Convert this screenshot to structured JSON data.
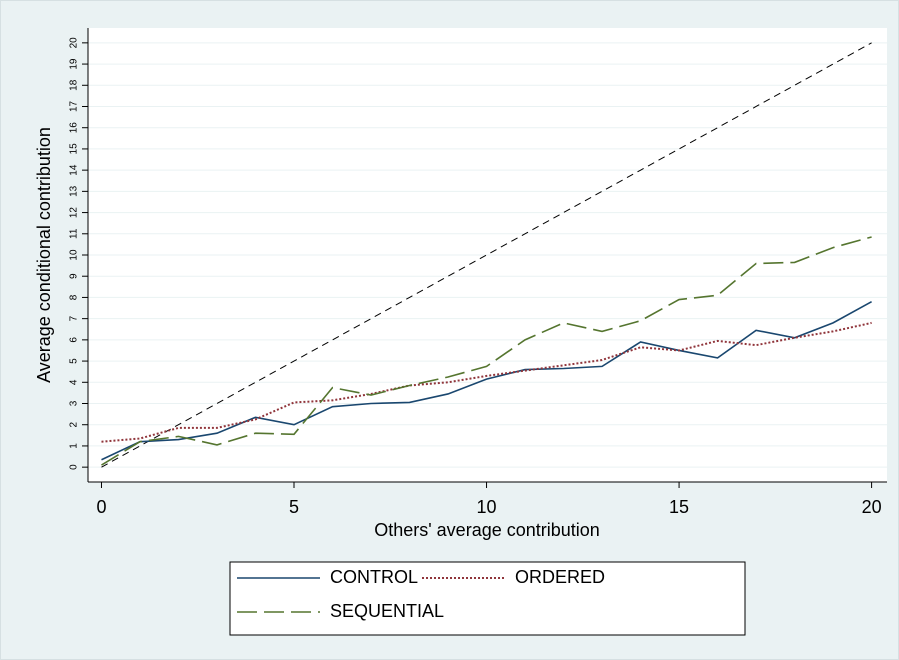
{
  "chart_data": {
    "type": "line",
    "y_axis_label": "Average conditional contribution",
    "x_axis_label": "Others' average contribution",
    "x": [
      0,
      1,
      2,
      3,
      4,
      5,
      6,
      7,
      8,
      9,
      10,
      11,
      12,
      13,
      14,
      15,
      16,
      17,
      18,
      19,
      20
    ],
    "series": [
      {
        "color": "#000000",
        "style": "dashed",
        "values": [
          0,
          1,
          2,
          3,
          4,
          5,
          6,
          7,
          8,
          9,
          10,
          11,
          12,
          13,
          14,
          15,
          16,
          17,
          18,
          19,
          20
        ]
      },
      {
        "name": "CONTROL",
        "color": "#1a476f",
        "style": "solid",
        "values": [
          0.35,
          1.2,
          1.3,
          1.6,
          2.35,
          2.0,
          2.85,
          3.0,
          3.05,
          3.45,
          4.15,
          4.6,
          4.65,
          4.75,
          5.9,
          5.5,
          5.15,
          6.45,
          6.1,
          6.8,
          7.8
        ]
      },
      {
        "name": "ORDERED",
        "color": "#90353b",
        "style": "dotted",
        "values": [
          1.2,
          1.35,
          1.85,
          1.85,
          2.25,
          3.05,
          3.15,
          3.45,
          3.85,
          4.0,
          4.3,
          4.55,
          4.8,
          5.05,
          5.65,
          5.5,
          5.95,
          5.75,
          6.1,
          6.4,
          6.8
        ]
      },
      {
        "name": "SEQUENTIAL",
        "color": "#55752f",
        "style": "longdash",
        "values": [
          0.1,
          1.2,
          1.45,
          1.05,
          1.6,
          1.55,
          3.75,
          3.4,
          3.85,
          4.25,
          4.75,
          6.0,
          6.8,
          6.4,
          6.9,
          7.9,
          8.1,
          9.6,
          9.65,
          10.35,
          10.85
        ]
      }
    ],
    "xlim": [
      -0.35,
      20.4
    ],
    "xticks": [
      0,
      5,
      10,
      15,
      20
    ],
    "ylim": [
      -0.7,
      20.7
    ],
    "yticks": [
      0,
      1,
      2,
      3,
      4,
      5,
      6,
      7,
      8,
      9,
      10,
      11,
      12,
      13,
      14,
      15,
      16,
      17,
      18,
      19,
      20
    ],
    "grid": true,
    "legend": "bottom"
  }
}
